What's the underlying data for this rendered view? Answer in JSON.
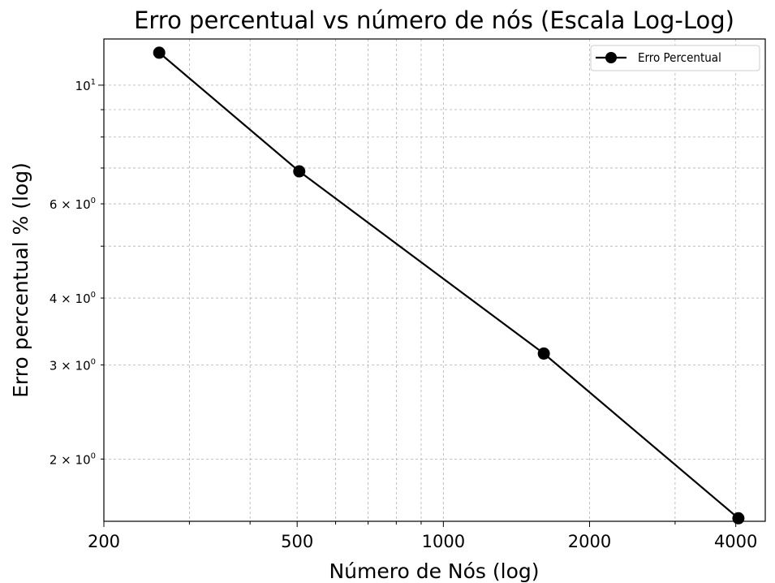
{
  "chart_data": {
    "type": "line",
    "title": "Erro percentual vs número de nós (Escala Log-Log)",
    "xlabel": "Número de Nós (log)",
    "ylabel": "Erro percentual % (log)",
    "xscale": "log",
    "yscale": "log",
    "xlim": [
      200,
      4600
    ],
    "ylim": [
      1.53,
      12.2
    ],
    "x_ticks": [
      {
        "value": 200,
        "label": "200"
      },
      {
        "value": 500,
        "label": "500"
      },
      {
        "value": 1000,
        "label": "1000"
      },
      {
        "value": 2000,
        "label": "2000"
      },
      {
        "value": 4000,
        "label": "4000"
      }
    ],
    "y_ticks": [
      {
        "value": 10,
        "base": "10",
        "exp": "1"
      },
      {
        "value": 6,
        "base": "6 × 10",
        "exp": "0"
      },
      {
        "value": 4,
        "base": "4 × 10",
        "exp": "0"
      },
      {
        "value": 3,
        "base": "3 × 10",
        "exp": "0"
      },
      {
        "value": 2,
        "base": "2 × 10",
        "exp": "0"
      }
    ],
    "grid": true,
    "legend_position": "top-right",
    "series": [
      {
        "name": "Erro Percentual",
        "color": "#000000",
        "x": [
          260,
          505,
          1610,
          4050
        ],
        "y": [
          11.5,
          6.9,
          3.15,
          1.55
        ]
      }
    ]
  }
}
